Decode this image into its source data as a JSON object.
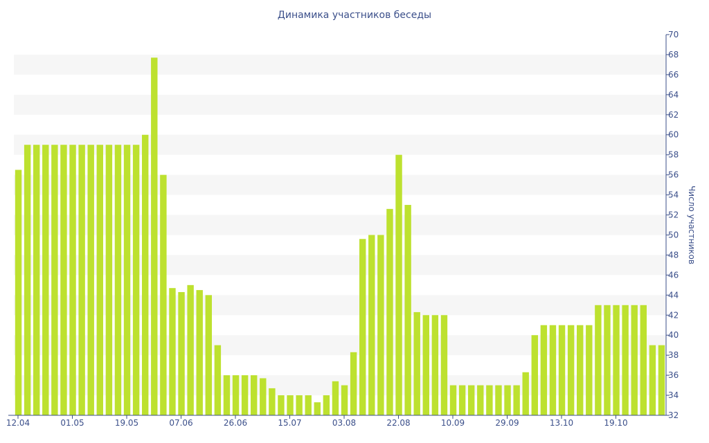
{
  "chart_data": {
    "type": "bar",
    "title": "Динамика участников беседы",
    "xlabel": "",
    "ylabel": "Число участников",
    "ylim": [
      32,
      70
    ],
    "y_ticks": [
      32,
      34,
      36,
      38,
      40,
      42,
      44,
      46,
      48,
      50,
      52,
      54,
      56,
      58,
      60,
      62,
      64,
      66,
      68,
      70
    ],
    "x_tick_labels": [
      "12.04",
      "01.05",
      "19.05",
      "07.06",
      "26.06",
      "15.07",
      "03.08",
      "22.08",
      "10.09",
      "29.09",
      "13.10",
      "19.10"
    ],
    "bar_color": "#bde12f",
    "band_color": "#f6f6f6",
    "axis_color": "#3b4f8a",
    "grid": "alternating horizontal bands",
    "values": [
      56.5,
      59,
      59,
      59,
      59,
      59,
      59,
      59,
      59,
      59,
      59,
      59,
      59,
      59,
      60,
      67.7,
      56,
      44.7,
      44.3,
      45,
      44.5,
      44,
      39,
      36,
      36,
      36,
      36,
      35.7,
      34.7,
      34,
      34,
      34,
      34,
      33.3,
      34,
      35.4,
      35,
      38.3,
      49.6,
      50,
      50,
      52.6,
      58,
      53,
      42.3,
      42,
      42,
      42,
      35,
      35,
      35,
      35,
      35,
      35,
      35,
      35,
      36.3,
      40,
      41,
      41,
      41,
      41,
      41,
      41,
      43,
      43,
      43,
      43,
      43,
      43,
      39,
      39
    ]
  }
}
